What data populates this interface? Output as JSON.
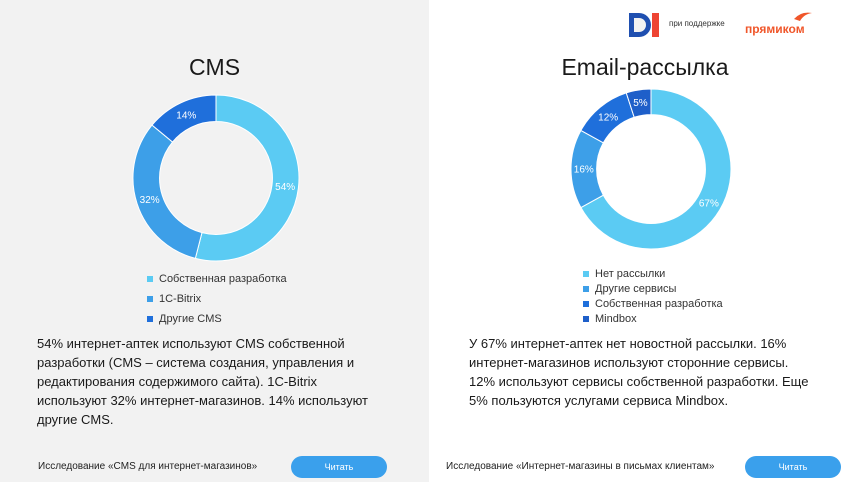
{
  "header": {
    "support_text": "при поддержке",
    "brand_name": "прямиком",
    "logo_letters": "DI"
  },
  "colors": {
    "light_blue": "#5bcbf3",
    "mid_blue": "#3d9fe8",
    "dark_blue": "#1f6fdb",
    "deep_blue": "#1e5fc9",
    "button": "#3aa0ec",
    "brand_orange": "#f0562a"
  },
  "chart_data": [
    {
      "type": "pie",
      "title": "CMS",
      "categories": [
        "Собственная разработка",
        "1C-Bitrix",
        "Другие CMS"
      ],
      "values": [
        54,
        32,
        14
      ],
      "value_labels": [
        "54%",
        "32%",
        "14%"
      ],
      "colors": [
        "#5bcbf3",
        "#3d9fe8",
        "#1f6fdb"
      ],
      "legend": "bottom",
      "donut": true
    },
    {
      "type": "pie",
      "title": "Email-рассылка",
      "categories": [
        "Нет рассылки",
        "Другие сервисы",
        "Собственная разработка",
        "Mindbox"
      ],
      "values": [
        67,
        16,
        12,
        5
      ],
      "value_labels": [
        "67%",
        "16%",
        "12%",
        "5%"
      ],
      "colors": [
        "#5bcbf3",
        "#3d9fe8",
        "#1f6fdb",
        "#1e5fc9"
      ],
      "legend": "bottom",
      "donut": true
    }
  ],
  "left": {
    "description": "54% интернет-аптек используют CMS собственной разработки (CMS – система создания, управления и редактирования содержимого сайта). 1C-Bitrix используют 32% интернет-магазинов. 14% используют другие CMS.",
    "footer": "Исследование «CMS для интернет-магазинов»",
    "button": "Читать"
  },
  "right": {
    "description": "У 67% интернет-аптек нет новостной рассылки. 16% интернет-магазинов используют сторонние сервисы. 12% используют сервисы собственной разработки. Еще 5% пользуются услугами сервиса Mindbox.",
    "footer": "Исследование «Интернет-магазины в письмах клиентам»",
    "button": "Читать"
  }
}
